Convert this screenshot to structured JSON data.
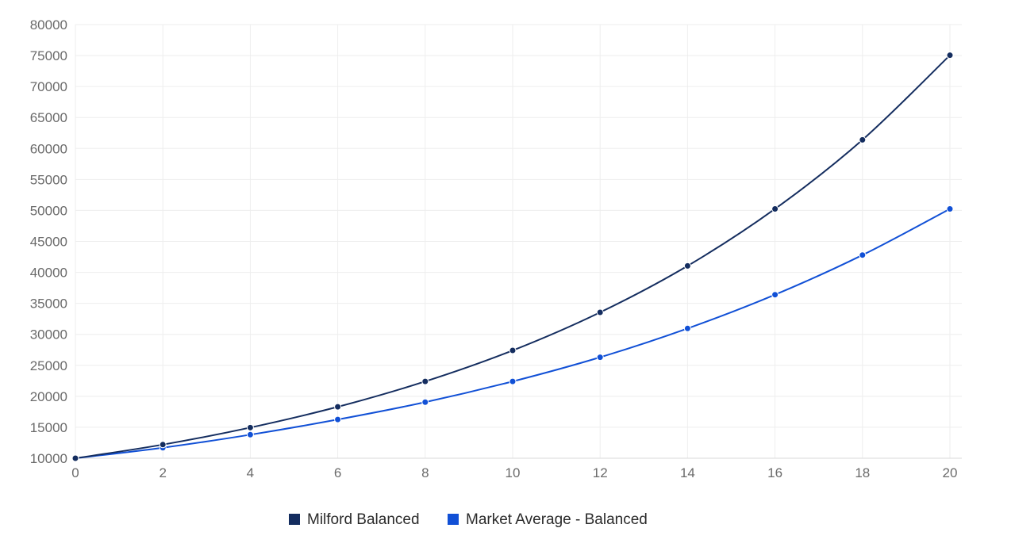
{
  "chart_data": {
    "type": "line",
    "title": "",
    "xlabel": "",
    "ylabel": "",
    "x": [
      0,
      2,
      4,
      6,
      8,
      10,
      12,
      14,
      16,
      18,
      20
    ],
    "xlim": [
      0,
      20
    ],
    "ylim": [
      10000,
      80000
    ],
    "x_ticks": [
      "0",
      "2",
      "4",
      "6",
      "8",
      "10",
      "12",
      "14",
      "16",
      "18",
      "20"
    ],
    "y_ticks": [
      "10000",
      "15000",
      "20000",
      "25000",
      "30000",
      "35000",
      "40000",
      "45000",
      "50000",
      "55000",
      "60000",
      "65000",
      "70000",
      "75000",
      "80000"
    ],
    "grid": true,
    "legend_position": "bottom-center",
    "series": [
      {
        "name": "Milford Balanced",
        "color": "#142d5f",
        "values": [
          10000,
          12200,
          14950,
          18300,
          22400,
          27400,
          33550,
          41050,
          50250,
          61400,
          75050
        ]
      },
      {
        "name": "Market Average - Balanced",
        "color": "#1150d6",
        "values": [
          10000,
          11700,
          13800,
          16250,
          19050,
          22400,
          26300,
          30950,
          36400,
          42800,
          50250
        ]
      }
    ]
  }
}
